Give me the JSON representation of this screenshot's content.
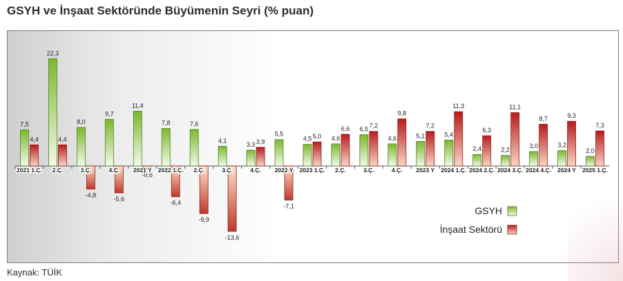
{
  "title": "GSYH ve İnşaat Sektöründe Büyümenin Seyri (% puan)",
  "source": "Kaynak: TÜİK",
  "colors": {
    "gsyh": "#8bc34a",
    "insaat": "#c62828"
  },
  "chart_data": {
    "type": "bar",
    "title": "GSYH ve İnşaat Sektöründe Büyümenin Seyri (% puan)",
    "categories": [
      "2021 1.Ç.",
      "2.Ç.",
      "3.Ç.",
      "4.Ç.",
      "2021 Y",
      "2022 1.Ç.",
      "2.Ç.",
      "3.Ç.",
      "4.Ç.",
      "2022 Y",
      "2023 1.Ç.",
      "2.Ç.",
      "3.Ç.",
      "4.Ç.",
      "2023 Y",
      "2024 1.Ç.",
      "2024 2.Ç.",
      "2024 3.Ç.",
      "2024 4.Ç.",
      "2024 Y",
      "2025 1.Ç."
    ],
    "series": [
      {
        "name": "GSYH",
        "values": [
          7.5,
          22.3,
          8.0,
          9.7,
          11.4,
          7.8,
          7.6,
          4.1,
          3.3,
          5.5,
          4.5,
          4.6,
          6.5,
          4.6,
          5.1,
          5.4,
          2.4,
          2.2,
          3.0,
          3.2,
          2.0
        ]
      },
      {
        "name": "İnşaat Sektörü",
        "values": [
          4.4,
          4.4,
          -4.8,
          -5.6,
          -0.6,
          -6.4,
          -9.9,
          -13.6,
          3.9,
          -7.1,
          5.0,
          6.6,
          7.2,
          9.8,
          7.2,
          11.3,
          6.3,
          11.1,
          8.7,
          9.3,
          7.3
        ]
      }
    ],
    "value_labels": {
      "gsyh": [
        "7,5",
        "22,3",
        "8,0",
        "9,7",
        "11,4",
        "7,8",
        "7,6",
        "4,1",
        "3,3",
        "5,5",
        "4,5",
        "4,6",
        "6,5",
        "4,6",
        "5,1",
        "5,4",
        "2,4",
        "2,2",
        "3,0",
        "3,2",
        "2,0"
      ],
      "insaat": [
        "4,4",
        "4,4",
        "-4,8",
        "-5,6",
        "-0,6",
        "-6,4",
        "-9,9",
        "-13,6",
        "3,9",
        "-7,1",
        "5,0",
        "6,6",
        "7,2",
        "9,8",
        "7,2",
        "11,3",
        "6,3",
        "11,1",
        "8,7",
        "9,3",
        "7,3"
      ]
    },
    "ylim": [
      -15.5,
      24.5
    ],
    "grid": false,
    "legend_position": "bottom-right"
  }
}
